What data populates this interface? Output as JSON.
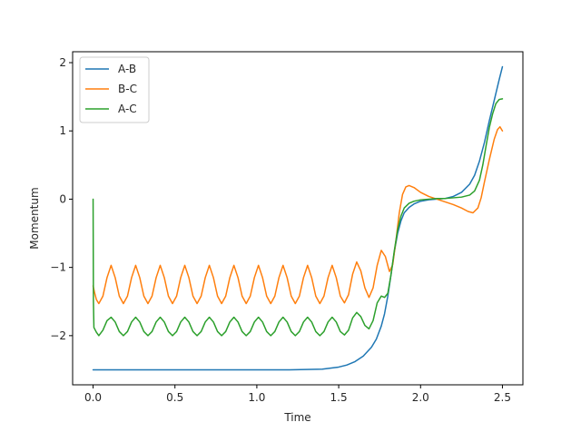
{
  "chart_data": {
    "type": "line",
    "title": "",
    "xlabel": "Time",
    "ylabel": "Momentum",
    "xlim": [
      -0.125,
      2.625
    ],
    "ylim": [
      -2.72,
      2.16
    ],
    "xticks": [
      0.0,
      0.5,
      1.0,
      1.5,
      2.0,
      2.5
    ],
    "xtick_labels": [
      "0.0",
      "0.5",
      "1.0",
      "1.5",
      "2.0",
      "2.5"
    ],
    "yticks": [
      -2,
      -1,
      0,
      1,
      2
    ],
    "ytick_labels": [
      "−2",
      "−1",
      "0",
      "1",
      "2"
    ],
    "grid": false,
    "legend": {
      "position": "top-left"
    },
    "series": [
      {
        "name": "A-B",
        "color": "#1f77b4",
        "points": [
          [
            0.0,
            -2.5
          ],
          [
            0.5,
            -2.5
          ],
          [
            1.0,
            -2.5
          ],
          [
            1.2,
            -2.5
          ],
          [
            1.4,
            -2.49
          ],
          [
            1.5,
            -2.46
          ],
          [
            1.55,
            -2.43
          ],
          [
            1.6,
            -2.38
          ],
          [
            1.65,
            -2.3
          ],
          [
            1.7,
            -2.17
          ],
          [
            1.73,
            -2.05
          ],
          [
            1.76,
            -1.86
          ],
          [
            1.78,
            -1.68
          ],
          [
            1.8,
            -1.42
          ],
          [
            1.82,
            -1.1
          ],
          [
            1.84,
            -0.77
          ],
          [
            1.86,
            -0.5
          ],
          [
            1.88,
            -0.32
          ],
          [
            1.9,
            -0.2
          ],
          [
            1.93,
            -0.12
          ],
          [
            1.96,
            -0.07
          ],
          [
            2.0,
            -0.03
          ],
          [
            2.05,
            -0.01
          ],
          [
            2.1,
            0.0
          ],
          [
            2.15,
            0.01
          ],
          [
            2.2,
            0.04
          ],
          [
            2.25,
            0.1
          ],
          [
            2.3,
            0.22
          ],
          [
            2.33,
            0.35
          ],
          [
            2.36,
            0.56
          ],
          [
            2.39,
            0.83
          ],
          [
            2.42,
            1.15
          ],
          [
            2.45,
            1.45
          ],
          [
            2.48,
            1.75
          ],
          [
            2.5,
            1.94
          ]
        ]
      },
      {
        "name": "B-C",
        "color": "#ff7f0e",
        "points": [
          [
            0.0,
            -1.27
          ],
          [
            0.01,
            -1.38
          ],
          [
            0.02,
            -1.47
          ],
          [
            0.035,
            -1.53
          ],
          [
            0.06,
            -1.42
          ],
          [
            0.085,
            -1.15
          ],
          [
            0.11,
            -0.97
          ],
          [
            0.135,
            -1.15
          ],
          [
            0.16,
            -1.42
          ],
          [
            0.185,
            -1.53
          ],
          [
            0.21,
            -1.42
          ],
          [
            0.235,
            -1.15
          ],
          [
            0.26,
            -0.97
          ],
          [
            0.285,
            -1.15
          ],
          [
            0.31,
            -1.42
          ],
          [
            0.335,
            -1.53
          ],
          [
            0.36,
            -1.42
          ],
          [
            0.385,
            -1.15
          ],
          [
            0.41,
            -0.97
          ],
          [
            0.435,
            -1.15
          ],
          [
            0.46,
            -1.42
          ],
          [
            0.485,
            -1.53
          ],
          [
            0.51,
            -1.42
          ],
          [
            0.535,
            -1.15
          ],
          [
            0.56,
            -0.97
          ],
          [
            0.585,
            -1.15
          ],
          [
            0.61,
            -1.42
          ],
          [
            0.635,
            -1.53
          ],
          [
            0.66,
            -1.42
          ],
          [
            0.685,
            -1.15
          ],
          [
            0.71,
            -0.97
          ],
          [
            0.735,
            -1.15
          ],
          [
            0.76,
            -1.42
          ],
          [
            0.785,
            -1.53
          ],
          [
            0.81,
            -1.42
          ],
          [
            0.835,
            -1.15
          ],
          [
            0.86,
            -0.97
          ],
          [
            0.885,
            -1.15
          ],
          [
            0.91,
            -1.42
          ],
          [
            0.935,
            -1.53
          ],
          [
            0.96,
            -1.42
          ],
          [
            0.985,
            -1.15
          ],
          [
            1.01,
            -0.97
          ],
          [
            1.035,
            -1.15
          ],
          [
            1.06,
            -1.42
          ],
          [
            1.085,
            -1.53
          ],
          [
            1.11,
            -1.42
          ],
          [
            1.135,
            -1.15
          ],
          [
            1.16,
            -0.97
          ],
          [
            1.185,
            -1.15
          ],
          [
            1.21,
            -1.42
          ],
          [
            1.235,
            -1.53
          ],
          [
            1.26,
            -1.42
          ],
          [
            1.285,
            -1.15
          ],
          [
            1.31,
            -0.97
          ],
          [
            1.335,
            -1.15
          ],
          [
            1.36,
            -1.42
          ],
          [
            1.385,
            -1.53
          ],
          [
            1.41,
            -1.42
          ],
          [
            1.435,
            -1.15
          ],
          [
            1.46,
            -0.97
          ],
          [
            1.485,
            -1.15
          ],
          [
            1.51,
            -1.42
          ],
          [
            1.535,
            -1.52
          ],
          [
            1.56,
            -1.4
          ],
          [
            1.585,
            -1.1
          ],
          [
            1.61,
            -0.92
          ],
          [
            1.635,
            -1.05
          ],
          [
            1.66,
            -1.3
          ],
          [
            1.685,
            -1.44
          ],
          [
            1.71,
            -1.3
          ],
          [
            1.735,
            -0.97
          ],
          [
            1.76,
            -0.75
          ],
          [
            1.785,
            -0.84
          ],
          [
            1.81,
            -1.06
          ],
          [
            1.83,
            -0.96
          ],
          [
            1.85,
            -0.6
          ],
          [
            1.87,
            -0.2
          ],
          [
            1.89,
            0.07
          ],
          [
            1.91,
            0.18
          ],
          [
            1.93,
            0.2
          ],
          [
            1.96,
            0.17
          ],
          [
            2.0,
            0.1
          ],
          [
            2.05,
            0.04
          ],
          [
            2.1,
            0.0
          ],
          [
            2.15,
            -0.04
          ],
          [
            2.2,
            -0.08
          ],
          [
            2.25,
            -0.13
          ],
          [
            2.29,
            -0.18
          ],
          [
            2.32,
            -0.2
          ],
          [
            2.35,
            -0.13
          ],
          [
            2.37,
            0.02
          ],
          [
            2.39,
            0.25
          ],
          [
            2.42,
            0.58
          ],
          [
            2.45,
            0.88
          ],
          [
            2.47,
            1.02
          ],
          [
            2.485,
            1.06
          ],
          [
            2.5,
            1.0
          ]
        ]
      },
      {
        "name": "A-C",
        "color": "#2ca02c",
        "points": [
          [
            0.0,
            0.0
          ],
          [
            0.002,
            -1.5
          ],
          [
            0.005,
            -1.88
          ],
          [
            0.02,
            -1.95
          ],
          [
            0.035,
            -2.0
          ],
          [
            0.06,
            -1.92
          ],
          [
            0.085,
            -1.78
          ],
          [
            0.11,
            -1.73
          ],
          [
            0.135,
            -1.8
          ],
          [
            0.16,
            -1.94
          ],
          [
            0.185,
            -2.0
          ],
          [
            0.21,
            -1.94
          ],
          [
            0.235,
            -1.8
          ],
          [
            0.26,
            -1.73
          ],
          [
            0.285,
            -1.8
          ],
          [
            0.31,
            -1.94
          ],
          [
            0.335,
            -2.0
          ],
          [
            0.36,
            -1.94
          ],
          [
            0.385,
            -1.8
          ],
          [
            0.41,
            -1.73
          ],
          [
            0.435,
            -1.8
          ],
          [
            0.46,
            -1.94
          ],
          [
            0.485,
            -2.0
          ],
          [
            0.51,
            -1.94
          ],
          [
            0.535,
            -1.8
          ],
          [
            0.56,
            -1.73
          ],
          [
            0.585,
            -1.8
          ],
          [
            0.61,
            -1.94
          ],
          [
            0.635,
            -2.0
          ],
          [
            0.66,
            -1.94
          ],
          [
            0.685,
            -1.8
          ],
          [
            0.71,
            -1.73
          ],
          [
            0.735,
            -1.8
          ],
          [
            0.76,
            -1.94
          ],
          [
            0.785,
            -2.0
          ],
          [
            0.81,
            -1.94
          ],
          [
            0.835,
            -1.8
          ],
          [
            0.86,
            -1.73
          ],
          [
            0.885,
            -1.8
          ],
          [
            0.91,
            -1.94
          ],
          [
            0.935,
            -2.0
          ],
          [
            0.96,
            -1.94
          ],
          [
            0.985,
            -1.8
          ],
          [
            1.01,
            -1.73
          ],
          [
            1.035,
            -1.8
          ],
          [
            1.06,
            -1.94
          ],
          [
            1.085,
            -2.0
          ],
          [
            1.11,
            -1.94
          ],
          [
            1.135,
            -1.8
          ],
          [
            1.16,
            -1.73
          ],
          [
            1.185,
            -1.8
          ],
          [
            1.21,
            -1.94
          ],
          [
            1.235,
            -2.0
          ],
          [
            1.26,
            -1.94
          ],
          [
            1.285,
            -1.8
          ],
          [
            1.31,
            -1.73
          ],
          [
            1.335,
            -1.8
          ],
          [
            1.36,
            -1.94
          ],
          [
            1.385,
            -2.0
          ],
          [
            1.41,
            -1.94
          ],
          [
            1.435,
            -1.8
          ],
          [
            1.46,
            -1.73
          ],
          [
            1.485,
            -1.8
          ],
          [
            1.51,
            -1.94
          ],
          [
            1.535,
            -1.99
          ],
          [
            1.56,
            -1.92
          ],
          [
            1.585,
            -1.74
          ],
          [
            1.61,
            -1.66
          ],
          [
            1.635,
            -1.72
          ],
          [
            1.66,
            -1.85
          ],
          [
            1.685,
            -1.9
          ],
          [
            1.71,
            -1.78
          ],
          [
            1.735,
            -1.52
          ],
          [
            1.76,
            -1.42
          ],
          [
            1.78,
            -1.44
          ],
          [
            1.8,
            -1.38
          ],
          [
            1.82,
            -1.1
          ],
          [
            1.84,
            -0.75
          ],
          [
            1.86,
            -0.45
          ],
          [
            1.88,
            -0.25
          ],
          [
            1.9,
            -0.13
          ],
          [
            1.93,
            -0.06
          ],
          [
            1.96,
            -0.03
          ],
          [
            2.0,
            -0.01
          ],
          [
            2.05,
            0.0
          ],
          [
            2.1,
            0.01
          ],
          [
            2.15,
            0.01
          ],
          [
            2.2,
            0.02
          ],
          [
            2.25,
            0.03
          ],
          [
            2.3,
            0.06
          ],
          [
            2.33,
            0.12
          ],
          [
            2.36,
            0.28
          ],
          [
            2.38,
            0.5
          ],
          [
            2.4,
            0.78
          ],
          [
            2.42,
            1.05
          ],
          [
            2.44,
            1.25
          ],
          [
            2.46,
            1.4
          ],
          [
            2.48,
            1.46
          ],
          [
            2.5,
            1.47
          ]
        ]
      }
    ]
  }
}
